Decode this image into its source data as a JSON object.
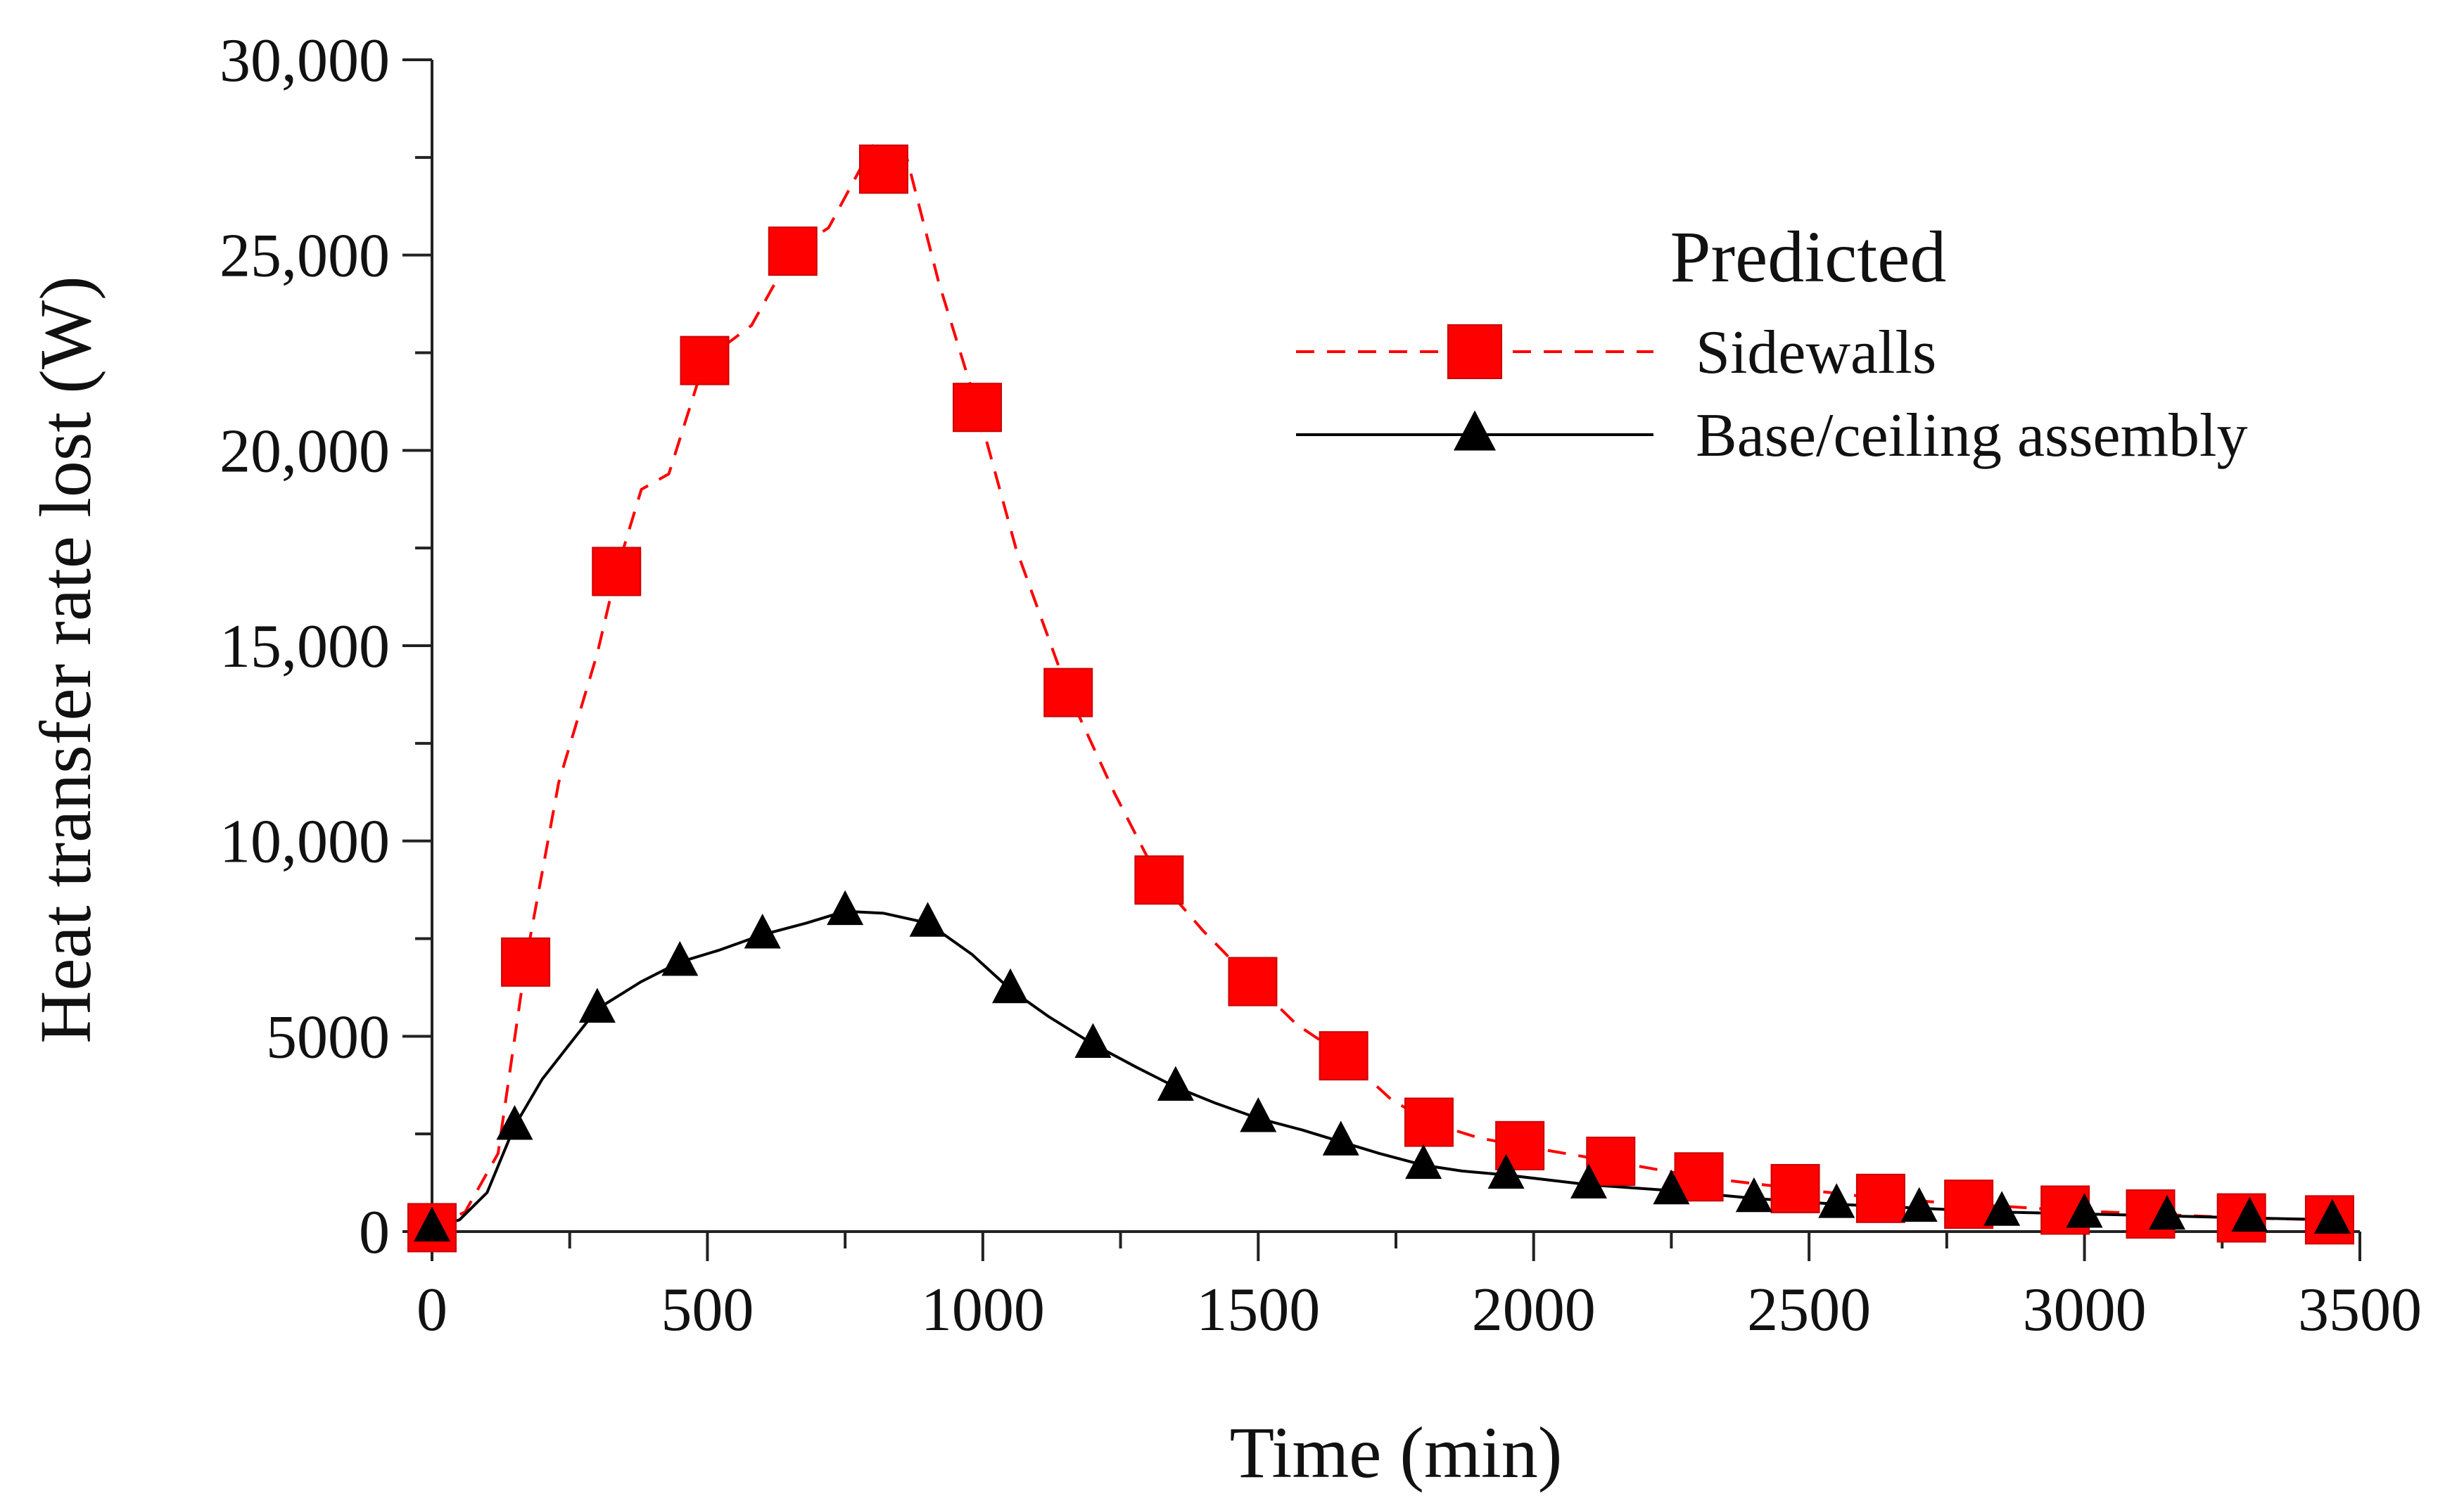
{
  "chart_data": {
    "type": "line",
    "title": "",
    "xlabel": "Time (min)",
    "ylabel": "Heat transfer rate lost (W)",
    "xlim": [
      0,
      3500
    ],
    "ylim": [
      0,
      30000
    ],
    "x_ticks": [
      0,
      500,
      1000,
      1500,
      2000,
      2500,
      3000,
      3500
    ],
    "x_tick_labels": [
      "0",
      "500",
      "1000",
      "1500",
      "2000",
      "2500",
      "3000",
      "3500"
    ],
    "y_ticks": [
      0,
      5000,
      10000,
      15000,
      20000,
      25000,
      30000
    ],
    "y_tick_labels": [
      "0",
      "5000",
      "10,000",
      "15,000",
      "20,000",
      "25,000",
      "30,000"
    ],
    "legend": {
      "title": "Predicted",
      "placement": "top-right"
    },
    "series": [
      {
        "name": "Sidewalls",
        "color": "#ff0000",
        "line_style": "dashed",
        "marker": "square",
        "x": [
          0,
          170,
          335,
          495,
          655,
          820,
          990,
          1155,
          1320,
          1490,
          1655,
          1810,
          1975,
          2140,
          2300,
          2475,
          2630,
          2790,
          2965,
          3120,
          3285,
          3445
        ],
        "y": [
          100,
          6900,
          16900,
          22300,
          25100,
          27200,
          21100,
          13800,
          9000,
          6400,
          4500,
          2800,
          2200,
          1800,
          1400,
          1100,
          850,
          700,
          550,
          450,
          350,
          300
        ],
        "curve_x": [
          0,
          60,
          120,
          170,
          230,
          300,
          335,
          380,
          430,
          495,
          580,
          655,
          720,
          800,
          860,
          920,
          990,
          1060,
          1155,
          1240,
          1320,
          1400,
          1490,
          1570,
          1655,
          1740,
          1810,
          1900,
          1975,
          2140,
          2300,
          2475,
          2630,
          2790,
          2965,
          3120,
          3285,
          3445
        ],
        "curve_y": [
          100,
          500,
          2000,
          6900,
          11500,
          14800,
          16900,
          19000,
          19400,
          22300,
          23200,
          25100,
          25700,
          27800,
          27600,
          24300,
          21100,
          17500,
          13800,
          11200,
          9000,
          7700,
          6400,
          5300,
          4500,
          3400,
          2800,
          2400,
          2200,
          1800,
          1400,
          1100,
          850,
          700,
          550,
          450,
          350,
          300
        ]
      },
      {
        "name": "Base/ceiling assembly",
        "color": "#000000",
        "line_style": "solid",
        "marker": "triangle",
        "x": [
          0,
          150,
          300,
          450,
          600,
          750,
          900,
          1050,
          1200,
          1350,
          1500,
          1650,
          1800,
          1950,
          2100,
          2250,
          2400,
          2550,
          2700,
          2850,
          3000,
          3150,
          3300,
          3450
        ],
        "y": [
          100,
          2700,
          5700,
          6900,
          7600,
          8200,
          7900,
          6200,
          4800,
          3700,
          2900,
          2300,
          1700,
          1450,
          1200,
          1050,
          850,
          700,
          600,
          500,
          450,
          400,
          350,
          300
        ],
        "curve_x": [
          0,
          50,
          100,
          150,
          200,
          250,
          300,
          380,
          450,
          520,
          600,
          680,
          750,
          820,
          900,
          980,
          1050,
          1120,
          1200,
          1280,
          1350,
          1420,
          1500,
          1580,
          1650,
          1720,
          1800,
          1870,
          1950,
          2100,
          2250,
          2400,
          2550,
          2700,
          2850,
          3000,
          3150,
          3300,
          3450
        ],
        "curve_y": [
          100,
          300,
          1000,
          2700,
          3900,
          4800,
          5700,
          6400,
          6900,
          7200,
          7600,
          7900,
          8200,
          8150,
          7900,
          7100,
          6200,
          5500,
          4800,
          4200,
          3700,
          3300,
          2900,
          2600,
          2300,
          2000,
          1700,
          1550,
          1450,
          1200,
          1050,
          850,
          700,
          600,
          500,
          450,
          400,
          350,
          300
        ]
      }
    ],
    "grid": false
  }
}
